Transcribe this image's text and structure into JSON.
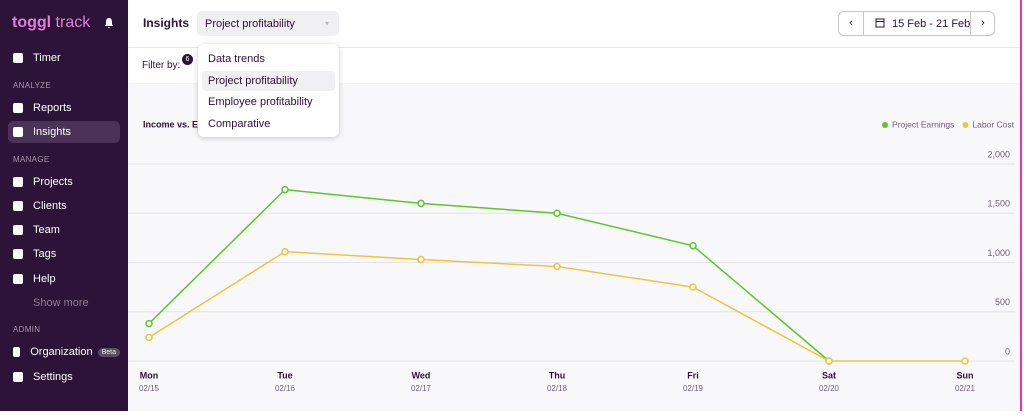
{
  "sidebar": {
    "logo_brand": "toggl",
    "logo_product": "track",
    "nav": [
      {
        "label": "Timer"
      },
      {
        "heading": "ANALYZE"
      },
      {
        "label": "Reports"
      },
      {
        "label": "Insights",
        "active": true
      },
      {
        "heading": "MANAGE"
      },
      {
        "label": "Projects"
      },
      {
        "label": "Clients"
      },
      {
        "label": "Team"
      },
      {
        "label": "Tags"
      },
      {
        "label": "Help"
      },
      {
        "label": "Show more",
        "muted": true
      },
      {
        "heading": "ADMIN"
      },
      {
        "label": "Organization",
        "badge": "Beta"
      },
      {
        "label": "Settings"
      }
    ]
  },
  "header": {
    "title": "Insights",
    "report_select": "Project profitability",
    "date_range": "15 Feb - 21 Feb"
  },
  "filter": {
    "label": "Filter by:",
    "count": "6"
  },
  "dropdown": {
    "options": [
      "Data trends",
      "Project profitability",
      "Employee profitability",
      "Comparative"
    ],
    "highlighted": 1
  },
  "chart_data": {
    "type": "line",
    "title": "Income vs. E",
    "categories": [
      "Mon",
      "Tue",
      "Wed",
      "Thu",
      "Fri",
      "Sat",
      "Sun"
    ],
    "x_labels": [
      "02/15",
      "02/16",
      "02/17",
      "02/18",
      "02/19",
      "02/20",
      "02/21"
    ],
    "series": [
      {
        "name": "Project Earnings",
        "color": "#5ac62c",
        "values": [
          380,
          1740,
          1600,
          1500,
          1170,
          0,
          null
        ]
      },
      {
        "name": "Labor Cost",
        "color": "#f0c43f",
        "values": [
          240,
          1110,
          1030,
          960,
          750,
          0,
          0
        ]
      }
    ],
    "ylim": [
      0,
      2000
    ],
    "yticks": [
      0,
      500,
      {
        "value": 1000,
        "label": "1,000"
      },
      {
        "value": 1500,
        "label": "1,500"
      },
      {
        "value": 2000,
        "label": "2,000"
      }
    ],
    "grid": true,
    "legend": "top-right"
  }
}
